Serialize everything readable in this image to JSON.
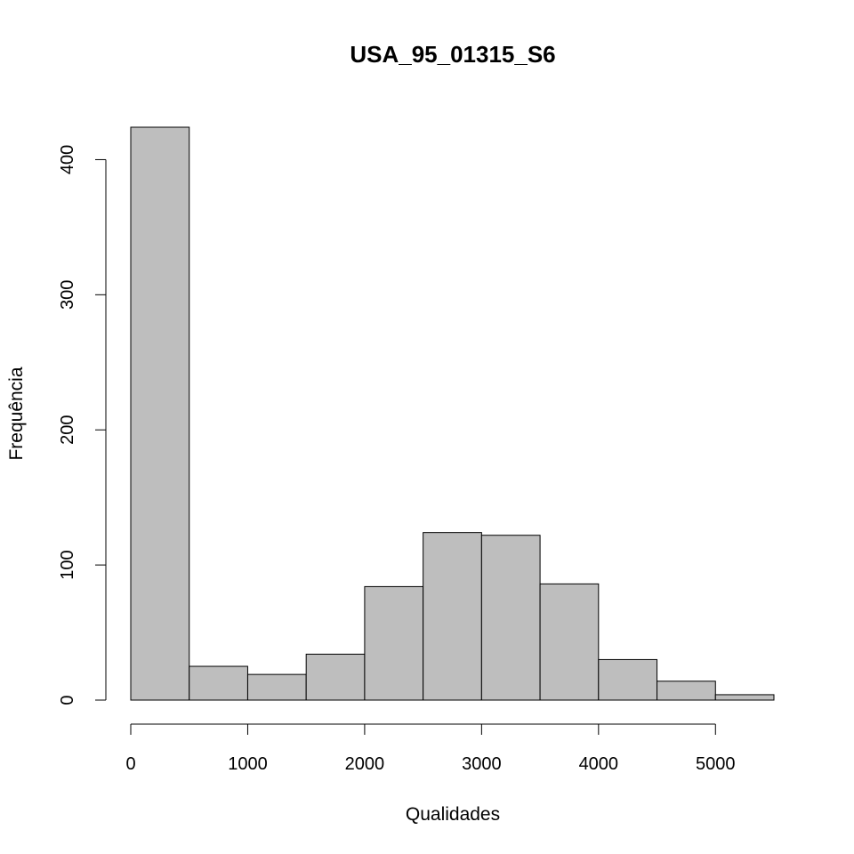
{
  "chart_data": {
    "type": "bar",
    "title": "USA_95_01315_S6",
    "xlabel": "Qualidades",
    "ylabel": "Frequência",
    "bins": [
      {
        "start": 0,
        "end": 500,
        "count": 424
      },
      {
        "start": 500,
        "end": 1000,
        "count": 25
      },
      {
        "start": 1000,
        "end": 1500,
        "count": 19
      },
      {
        "start": 1500,
        "end": 2000,
        "count": 34
      },
      {
        "start": 2000,
        "end": 2500,
        "count": 84
      },
      {
        "start": 2500,
        "end": 3000,
        "count": 124
      },
      {
        "start": 3000,
        "end": 3500,
        "count": 122
      },
      {
        "start": 3500,
        "end": 4000,
        "count": 86
      },
      {
        "start": 4000,
        "end": 4500,
        "count": 30
      },
      {
        "start": 4500,
        "end": 5000,
        "count": 14
      },
      {
        "start": 5000,
        "end": 5500,
        "count": 4
      }
    ],
    "xticks": [
      0,
      1000,
      2000,
      3000,
      4000,
      5000
    ],
    "yticks": [
      0,
      100,
      200,
      300,
      400
    ],
    "xlim": [
      0,
      5500
    ],
    "ylim": [
      0,
      424
    ],
    "grid": false,
    "bar_color": "#bebebe",
    "edge_color": "#000000"
  }
}
